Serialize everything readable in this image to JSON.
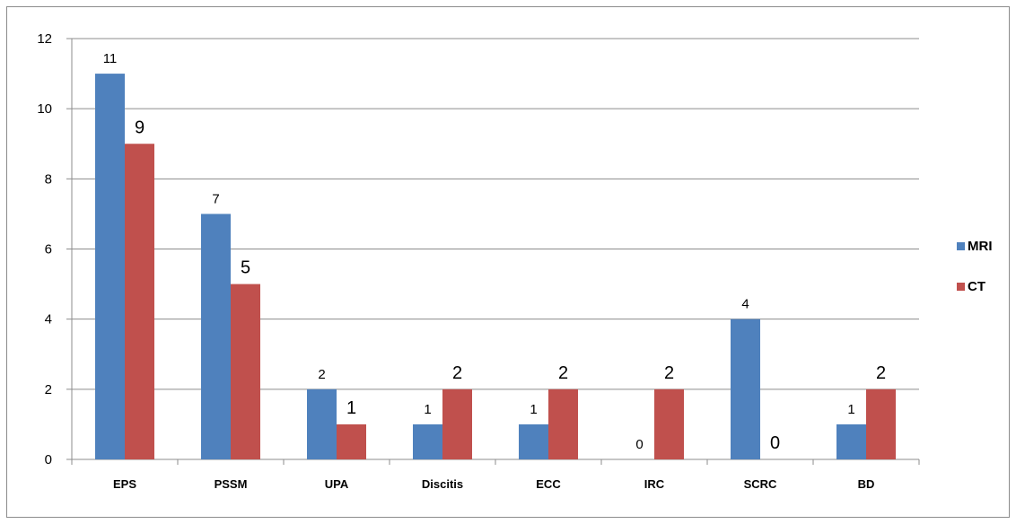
{
  "chart_data": {
    "type": "bar",
    "categories": [
      "EPS",
      "PSSM",
      "UPA",
      "Discitis",
      "ECC",
      "IRC",
      "SCRC",
      "BD"
    ],
    "series": [
      {
        "name": "MRI",
        "values": [
          11,
          7,
          2,
          1,
          1,
          0,
          4,
          1
        ],
        "color": "#4f81bd"
      },
      {
        "name": "CT",
        "values": [
          9,
          5,
          1,
          2,
          2,
          2,
          0,
          2
        ],
        "color": "#c0504d"
      }
    ],
    "ylim": [
      0,
      12
    ],
    "yticks": [
      0,
      2,
      4,
      6,
      8,
      10,
      12
    ],
    "grid": true,
    "legend_position": "right",
    "title": "",
    "xlabel": "",
    "ylabel": ""
  }
}
